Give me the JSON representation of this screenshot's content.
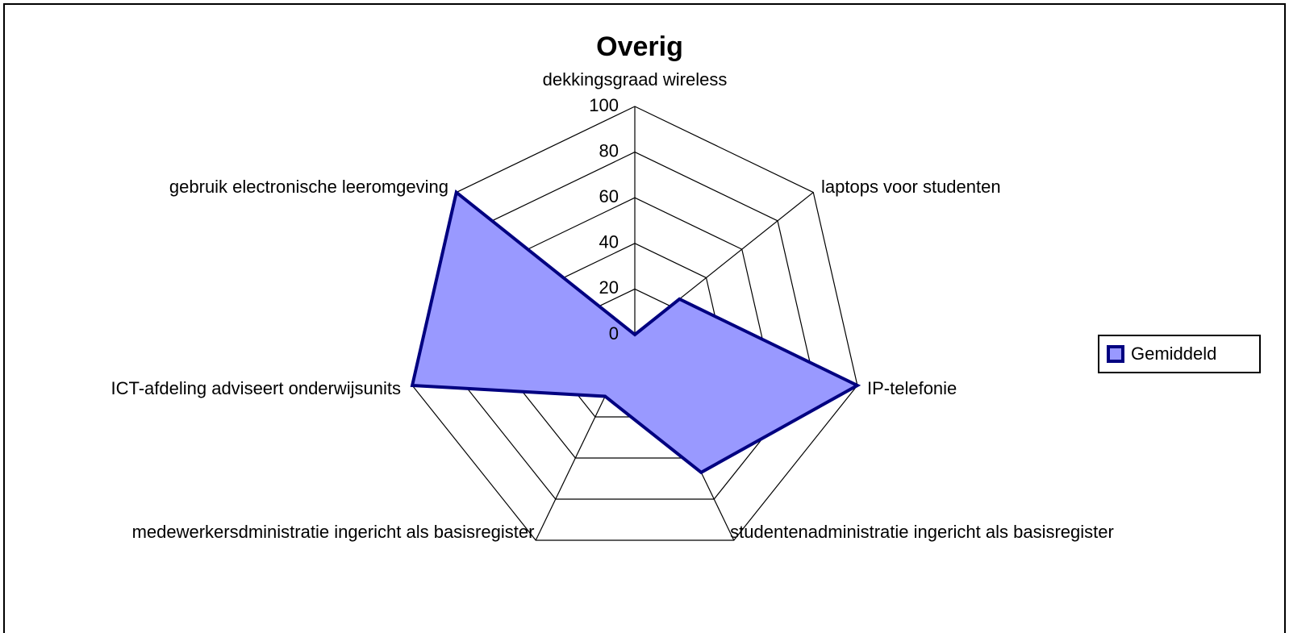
{
  "chart_data": {
    "type": "radar",
    "title": "Overig",
    "categories": [
      "dekkingsgraad wireless",
      "laptops voor studenten",
      "IP-telefonie",
      "studentenadministratie ingericht als basisregister",
      "medewerkersdministratie ingericht als basisregister",
      "ICT-afdeling adviseert onderwijsunits",
      "gebruik electronische leeromgeving"
    ],
    "series": [
      {
        "name": "Gemiddeld",
        "color": "#9999ff",
        "stroke": "#000080",
        "values": [
          0,
          25,
          100,
          67,
          30,
          100,
          100
        ]
      }
    ],
    "ylim": [
      0,
      100
    ],
    "yticks": [
      0,
      20,
      40,
      60,
      80,
      100
    ],
    "grid": true,
    "legend": "right"
  }
}
